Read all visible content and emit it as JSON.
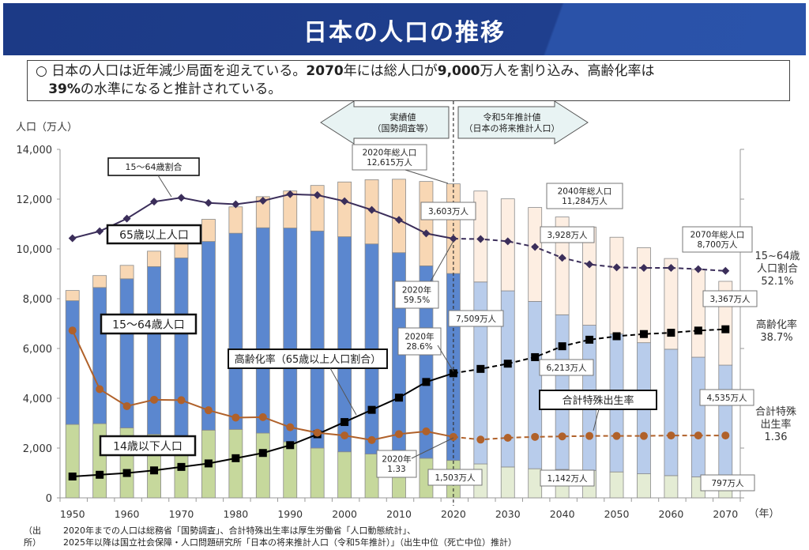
{
  "header": {
    "title": "日本の人口の推移"
  },
  "summary": {
    "bullet": "○",
    "text_parts": [
      "日本の人口は近年減少局面を迎えている。",
      "2070",
      "年には総人口が",
      "9,000",
      "万人を割り込み、高齢化率は",
      "39%",
      "の水準になると推計されている。"
    ]
  },
  "source": {
    "label": "（出所）",
    "line1": "2020年までの人口は総務省「国勢調査」、合計特殊出生率は厚生労働省「人口動態統計」、",
    "line2": "2025年以降は国立社会保障・人口問題研究所「日本の将来推計人口（令和5年推計）」（出生中位（死亡中位）推計）"
  },
  "colors": {
    "age65_actual": "#f8d7b4",
    "age15_64_actual": "#5b87cf",
    "age0_14_actual": "#c6d89c",
    "age65_proj": "#fdeee2",
    "age15_64_proj": "#b8cceb",
    "age0_14_proj": "#e4ecd4",
    "ratio_15_64": "#3b2e5a",
    "aging_rate": "#000000",
    "tfr": "#b0612a",
    "arrow_fill": "#e8f3f3"
  },
  "chart_data": {
    "type": "bar",
    "stacked": true,
    "title": "日本の人口の推移",
    "ylabel": "人口（万人）",
    "xlabel": "（年）",
    "ylim": [
      0,
      14000
    ],
    "y_ticks": [
      "0",
      "2,000",
      "4,000",
      "6,000",
      "8,000",
      "10,000",
      "12,000",
      "14,000"
    ],
    "x_tick_labels": [
      "1950",
      "1960",
      "1970",
      "1980",
      "1990",
      "2000",
      "2010",
      "2020",
      "2030",
      "2040",
      "2050",
      "2060",
      "2070"
    ],
    "categories": [
      1950,
      1955,
      1960,
      1965,
      1970,
      1975,
      1980,
      1985,
      1990,
      1995,
      2000,
      2005,
      2010,
      2015,
      2020,
      2025,
      2030,
      2035,
      2040,
      2045,
      2050,
      2055,
      2060,
      2065,
      2070
    ],
    "projection_start": 2025,
    "series": [
      {
        "name": "14歳以下人口",
        "values": [
          2950,
          2980,
          2810,
          2550,
          2480,
          2720,
          2750,
          2600,
          2250,
          2000,
          1850,
          1760,
          1680,
          1590,
          1503,
          1363,
          1240,
          1169,
          1142,
          1103,
          1041,
          966,
          893,
          841,
          797
        ]
      },
      {
        "name": "15〜64歳人口",
        "values": [
          4970,
          5470,
          5990,
          6740,
          7160,
          7580,
          7880,
          8250,
          8590,
          8720,
          8640,
          8440,
          8170,
          7730,
          7509,
          7310,
          7076,
          6722,
          6213,
          5832,
          5540,
          5267,
          5078,
          4809,
          4535
        ]
      },
      {
        "name": "65歳以上人口",
        "values": [
          410,
          480,
          540,
          620,
          730,
          890,
          1060,
          1250,
          1490,
          1830,
          2200,
          2580,
          2950,
          3390,
          3603,
          3653,
          3696,
          3773,
          3928,
          3945,
          3888,
          3817,
          3644,
          3525,
          3367
        ]
      }
    ],
    "line_series": [
      {
        "name": "15〜64歳割合",
        "unit": "%",
        "axis_max": 80,
        "values": [
          59.6,
          61.2,
          64.1,
          68.0,
          68.9,
          67.7,
          67.4,
          68.2,
          69.7,
          69.5,
          68.1,
          66.1,
          63.8,
          60.7,
          59.5,
          59.4,
          58.9,
          57.6,
          55.1,
          53.6,
          52.9,
          52.8,
          52.8,
          52.5,
          52.1
        ]
      },
      {
        "name": "高齢化率（65歳以上人口割合）",
        "unit": "%",
        "axis_max": 80,
        "values": [
          4.9,
          5.3,
          5.7,
          6.3,
          7.1,
          7.9,
          9.1,
          10.3,
          12.1,
          14.6,
          17.4,
          20.2,
          23.0,
          26.6,
          28.6,
          29.6,
          30.8,
          32.3,
          34.8,
          36.3,
          37.1,
          37.6,
          37.9,
          38.4,
          38.7
        ]
      },
      {
        "name": "合計特殊出生率",
        "unit": "",
        "axis_max": 7.6,
        "values": [
          3.65,
          2.37,
          2.0,
          2.14,
          2.13,
          1.91,
          1.75,
          1.76,
          1.54,
          1.42,
          1.36,
          1.26,
          1.39,
          1.45,
          1.33,
          1.27,
          1.31,
          1.33,
          1.34,
          1.35,
          1.35,
          1.35,
          1.36,
          1.36,
          1.36
        ]
      }
    ],
    "legend_labels": {
      "ratio_15_64": "15〜64歳割合",
      "age65": "65歳以上人口",
      "age15_64": "15〜64歳人口",
      "aging_rate": "高齢化率（65歳以上人口割合）",
      "age0_14": "14歳以下人口",
      "tfr": "合計特殊出生率"
    },
    "period_arrows": {
      "actual": [
        "実績値",
        "（国勢調査等）"
      ],
      "projected": [
        "令和5年推計値",
        "（日本の将来推計人口）"
      ]
    },
    "annotations": {
      "total_2020": [
        "2020年総人口",
        "12,615万人"
      ],
      "total_2040": [
        "2040年総人口",
        "11,284万人"
      ],
      "total_2070": [
        "2070年総人口",
        "8,700万人"
      ],
      "age65_2020": "3,603万人",
      "age65_2040": "3,928万人",
      "age65_2070": "3,367万人",
      "age15_64_2020": "7,509万人",
      "age15_64_2040": "6,213万人",
      "age15_64_2070": "4,535万人",
      "age0_14_2020": "1,503万人",
      "age0_14_2040": "1,142万人",
      "age0_14_2070": "797万人",
      "ratio_2020": [
        "2020年",
        "59.5%"
      ],
      "aging_2020": [
        "2020年",
        "28.6%"
      ],
      "tfr_2020": [
        "2020年",
        "1.33"
      ],
      "right_ratio": [
        "15~64歳",
        "人口割合",
        "52.1%"
      ],
      "right_aging": [
        "高齢化率",
        "38.7%"
      ],
      "right_tfr": [
        "合計特殊",
        "出生率",
        "1.36"
      ]
    }
  }
}
